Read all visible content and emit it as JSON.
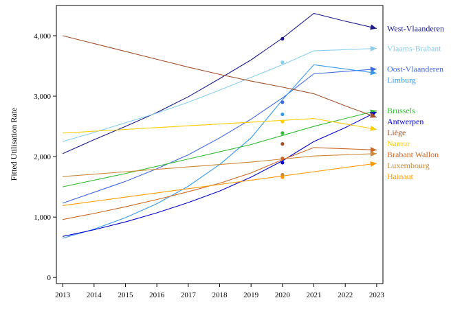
{
  "chart_data": {
    "type": "line",
    "title": "",
    "xlabel": "",
    "ylabel": "Fitted Utilisation Rate",
    "x": [
      2013,
      2014,
      2015,
      2016,
      2017,
      2018,
      2019,
      2020,
      2021,
      2022,
      2023
    ],
    "xlim": [
      2012.8,
      2023.2
    ],
    "ylim": [
      -100,
      4500
    ],
    "yticks": [
      0,
      1000,
      2000,
      3000,
      4000
    ],
    "ytick_labels": [
      "0",
      "1,000",
      "2,000",
      "3,000",
      "4,000"
    ],
    "grid": false,
    "legend": "right, labels at line ends",
    "marker_year": 2020,
    "series": [
      {
        "name": "West-Vlaanderen",
        "color": "#1a1a8c",
        "values": [
          2050,
          2280,
          2500,
          2730,
          2990,
          3290,
          3600,
          3960,
          4370,
          4240,
          4120
        ],
        "marker": 3950
      },
      {
        "name": "Vlaams-Brabant",
        "color": "#87ceeb",
        "values": [
          2250,
          2400,
          2560,
          2720,
          2900,
          3100,
          3310,
          3520,
          3750,
          3770,
          3790
        ],
        "marker": 3560
      },
      {
        "name": "Oost-Vlaanderen",
        "color": "#4169e1",
        "values": [
          1230,
          1410,
          1590,
          1800,
          2030,
          2310,
          2620,
          2970,
          3370,
          3410,
          3450
        ],
        "marker": 2900
      },
      {
        "name": "Limburg",
        "color": "#3399ee",
        "values": [
          650,
          800,
          990,
          1220,
          1510,
          1870,
          2310,
          2940,
          3520,
          3450,
          3380
        ],
        "marker": 2700
      },
      {
        "name": "Brussels",
        "color": "#33bb33",
        "values": [
          1500,
          1610,
          1720,
          1840,
          1960,
          2080,
          2200,
          2350,
          2500,
          2630,
          2760
        ],
        "marker": 2390
      },
      {
        "name": "Antwerpen",
        "color": "#0000cc",
        "values": [
          680,
          790,
          920,
          1070,
          1240,
          1430,
          1660,
          1930,
          2250,
          2480,
          2740
        ],
        "marker": 1900
      },
      {
        "name": "Liège",
        "color": "#a0522d",
        "values": [
          4000,
          3870,
          3740,
          3610,
          3480,
          3360,
          3250,
          3150,
          3040,
          2840,
          2650
        ],
        "marker": 2210
      },
      {
        "name": "Namur",
        "color": "#ffcc00",
        "values": [
          2390,
          2420,
          2450,
          2480,
          2510,
          2540,
          2570,
          2600,
          2630,
          2540,
          2450
        ],
        "marker": 2580
      },
      {
        "name": "Brabant Wallon",
        "color": "#cc6622",
        "values": [
          960,
          1060,
          1170,
          1290,
          1420,
          1560,
          1730,
          1950,
          2150,
          2130,
          2110
        ],
        "marker": 1970
      },
      {
        "name": "Luxembourg",
        "color": "#cc8833",
        "values": [
          1670,
          1710,
          1750,
          1790,
          1830,
          1870,
          1910,
          1960,
          2010,
          2030,
          2050
        ],
        "marker": 1700
      },
      {
        "name": "Hainaut",
        "color": "#ff9900",
        "values": [
          1190,
          1260,
          1330,
          1400,
          1470,
          1540,
          1610,
          1680,
          1750,
          1820,
          1890
        ],
        "marker": 1660
      }
    ]
  }
}
